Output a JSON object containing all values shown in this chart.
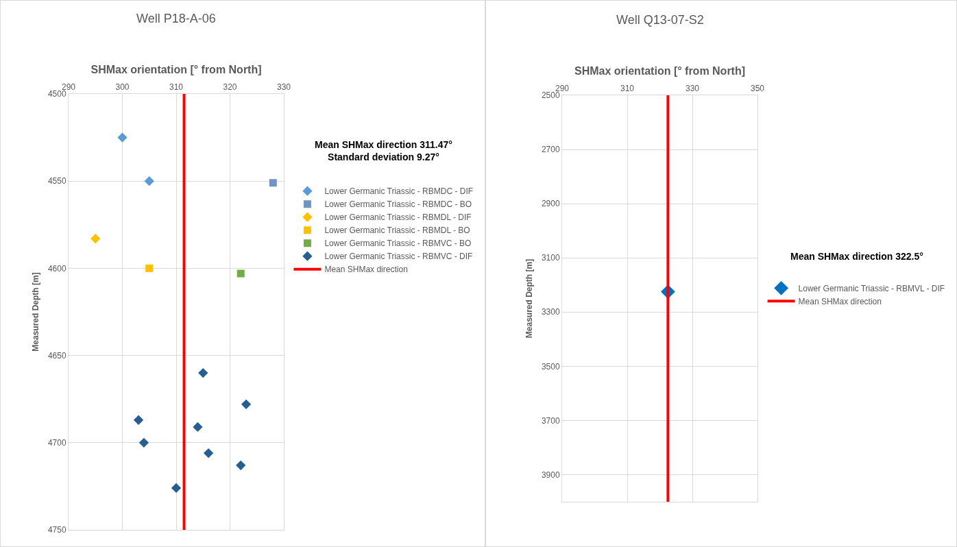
{
  "chart_data": [
    {
      "type": "scatter",
      "title": "Well P18-A-06",
      "xlabel": "SHMax orientation [° from North]",
      "ylabel": "Measured Depth [m]",
      "xlim": [
        290,
        330
      ],
      "xticks": [
        290,
        300,
        310,
        320,
        330
      ],
      "ylim": [
        4750,
        4500
      ],
      "yticks": [
        4500,
        4550,
        4600,
        4650,
        4700,
        4750
      ],
      "grid": true,
      "legend": "right",
      "annotations": [
        "Mean SHMax direction 311.47°",
        "Standard deviation 9.27°"
      ],
      "series": [
        {
          "name": "Lower Germanic Triassic - RBMDC - DIF",
          "color": "#5b9bd5",
          "marker": "diamond",
          "x": [
            300,
            305
          ],
          "values": [
            4525,
            4550
          ]
        },
        {
          "name": "Lower Germanic Triassic - RBMDC - BO",
          "color": "#6f95c6",
          "marker": "square",
          "x": [
            328
          ],
          "values": [
            4551
          ]
        },
        {
          "name": "Lower Germanic Triassic - RBMDL - DIF",
          "color": "#ffc000",
          "marker": "diamond",
          "x": [
            295
          ],
          "values": [
            4583
          ]
        },
        {
          "name": "Lower Germanic Triassic - RBMDL - BO",
          "color": "#ffc000",
          "marker": "square",
          "x": [
            305
          ],
          "values": [
            4600
          ]
        },
        {
          "name": "Lower Germanic Triassic - RBMVC - BO",
          "color": "#70ad47",
          "marker": "square",
          "x": [
            322
          ],
          "values": [
            4603
          ]
        },
        {
          "name": "Lower Germanic Triassic - RBMVC - DIF",
          "color": "#255e91",
          "marker": "diamond",
          "x": [
            315,
            323,
            303,
            314,
            304,
            316,
            322,
            310
          ],
          "values": [
            4660,
            4678,
            4687,
            4691,
            4700,
            4706,
            4713,
            4726
          ]
        },
        {
          "name": "Mean SHMax direction",
          "type": "line",
          "color": "#ff0000",
          "marker": "none",
          "x": [
            311.47,
            311.47
          ],
          "values": [
            4500,
            4750
          ]
        }
      ]
    },
    {
      "type": "scatter",
      "title": "Well Q13-07-S2",
      "xlabel": "SHMax orientation [° from North]",
      "ylabel": "Measured Depth [m]",
      "xlim": [
        290,
        350
      ],
      "xticks": [
        290,
        310,
        330,
        350
      ],
      "ylim": [
        4000,
        2500
      ],
      "yticks": [
        2500,
        2700,
        2900,
        3100,
        3300,
        3500,
        3700,
        3900
      ],
      "grid": true,
      "legend": "right",
      "annotations": [
        "Mean SHMax direction 322.5°"
      ],
      "series": [
        {
          "name": "Lower Germanic Triassic - RBMVL - DIF",
          "color": "#0070c0",
          "marker": "diamond",
          "x": [
            322.5
          ],
          "values": [
            3225
          ]
        },
        {
          "name": "Mean SHMax direction",
          "type": "line",
          "color": "#ff0000",
          "marker": "none",
          "x": [
            322.5,
            322.5
          ],
          "values": [
            2500,
            4000
          ]
        }
      ]
    }
  ]
}
